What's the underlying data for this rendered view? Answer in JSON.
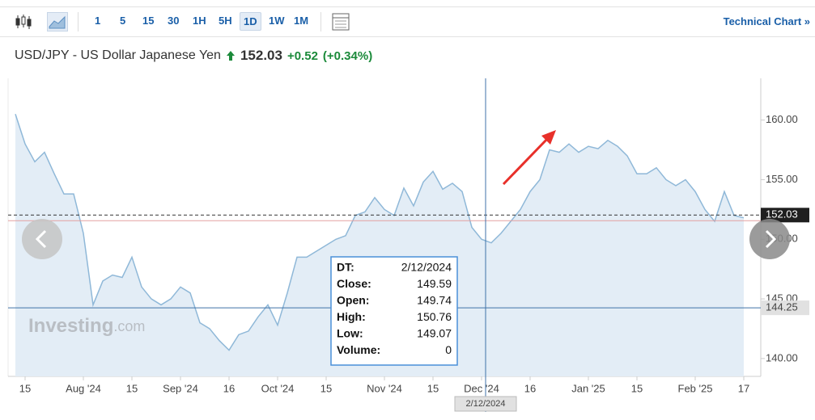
{
  "toolbar": {
    "intervals": [
      "1",
      "5",
      "15",
      "30",
      "1H",
      "5H",
      "1D",
      "1W",
      "1M"
    ],
    "active_interval": "1D",
    "technical_chart": "Technical Chart »"
  },
  "header": {
    "symbol": "USD/JPY - US Dollar Japanese Yen",
    "price": "152.03",
    "change": "+0.52",
    "change_pct": "(+0.34%)"
  },
  "watermark": [
    "Investing",
    ".com"
  ],
  "tooltip": {
    "rows": [
      [
        "DT:",
        "2/12/2024"
      ],
      [
        "Close:",
        "149.59"
      ],
      [
        "Open:",
        "149.74"
      ],
      [
        "High:",
        "150.76"
      ],
      [
        "Low:",
        "149.07"
      ],
      [
        "Volume:",
        "0"
      ]
    ]
  },
  "chart_data": {
    "type": "area",
    "color": "#8fb8d8",
    "fill": "#e3edf6",
    "categories": [
      null,
      "15",
      null,
      null,
      null,
      null,
      null,
      "Aug '24",
      null,
      null,
      null,
      null,
      "15",
      null,
      null,
      null,
      null,
      "Sep '24",
      null,
      null,
      null,
      null,
      "16",
      null,
      null,
      null,
      null,
      "Oct '24",
      null,
      null,
      null,
      null,
      "15",
      null,
      null,
      null,
      null,
      null,
      "Nov '24",
      null,
      null,
      null,
      null,
      "15",
      null,
      null,
      null,
      null,
      "Dec '24",
      null,
      null,
      null,
      null,
      "16",
      null,
      null,
      null,
      null,
      null,
      "Jan '25",
      null,
      null,
      null,
      null,
      "15",
      null,
      null,
      null,
      null,
      null,
      "Feb '25",
      null,
      null,
      null,
      null,
      "17"
    ],
    "values": [
      160.5,
      158,
      156.5,
      157.3,
      155.5,
      153.8,
      153.8,
      150.5,
      144.5,
      146.5,
      147,
      146.8,
      148.5,
      146,
      145,
      144.5,
      145,
      146,
      145.5,
      143,
      142.5,
      141.5,
      140.7,
      142,
      142.3,
      143.5,
      144.5,
      142.8,
      145.5,
      148.5,
      148.5,
      149,
      149.5,
      150,
      150.3,
      152,
      152.3,
      153.5,
      152.5,
      152,
      154.3,
      152.8,
      154.8,
      155.7,
      154.2,
      154.7,
      154,
      151,
      150,
      149.7,
      150.5,
      151.5,
      152.5,
      154,
      155,
      157.5,
      157.3,
      158,
      157.3,
      157.8,
      157.6,
      158.3,
      157.8,
      157,
      155.5,
      155.5,
      156,
      155,
      154.5,
      155,
      154,
      152.5,
      151.5,
      154,
      152,
      151.8
    ],
    "ylim": [
      138.5,
      163.5
    ],
    "yticks": [
      {
        "value": 140,
        "label": "140.00"
      },
      {
        "value": 145,
        "label": "145.00"
      },
      {
        "value": 150,
        "label": "150.00"
      },
      {
        "value": 155,
        "label": "155.00"
      },
      {
        "value": 160,
        "label": "160.00"
      }
    ],
    "last_price": 152.03,
    "crosshair": {
      "y": 144.25,
      "x_label": "2/12/2024"
    }
  }
}
